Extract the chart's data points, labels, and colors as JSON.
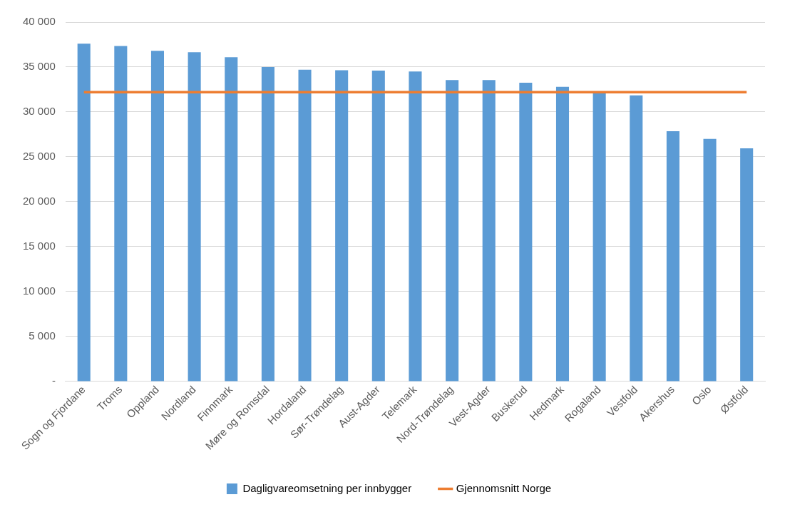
{
  "chart_data": {
    "type": "bar",
    "categories": [
      "Sogn og Fjordane",
      "Troms",
      "Oppland",
      "Nordland",
      "Finnmark",
      "Møre og Romsdal",
      "Hordaland",
      "Sør-Trøndelag",
      "Aust-Agder",
      "Telemark",
      "Nord-Trøndelag",
      "Vest-Agder",
      "Buskerud",
      "Hedmark",
      "Rogaland",
      "Vestfold",
      "Akershus",
      "Oslo",
      "Østfold"
    ],
    "series": [
      {
        "name": "Dagligvareomsetning per innbygger",
        "color": "#5b9bd5",
        "values": [
          37600,
          37350,
          36800,
          36650,
          36100,
          35000,
          34700,
          34650,
          34600,
          34500,
          33550,
          33550,
          33250,
          32800,
          32200,
          31850,
          27850,
          27000,
          25950
        ]
      },
      {
        "name": "Gjennomsnitt Norge",
        "type": "line",
        "color": "#ed7d31",
        "values": [
          32200,
          32200,
          32200,
          32200,
          32200,
          32200,
          32200,
          32200,
          32200,
          32200,
          32200,
          32200,
          32200,
          32200,
          32200,
          32200,
          32200,
          32200,
          32200
        ]
      }
    ],
    "ylim": [
      0,
      40000
    ],
    "yticks": [
      {
        "value": 0,
        "label": "-"
      },
      {
        "value": 5000,
        "label": "5 000"
      },
      {
        "value": 10000,
        "label": "10 000"
      },
      {
        "value": 15000,
        "label": "15 000"
      },
      {
        "value": 20000,
        "label": "20 000"
      },
      {
        "value": 25000,
        "label": "25 000"
      },
      {
        "value": 30000,
        "label": "30 000"
      },
      {
        "value": 35000,
        "label": "35 000"
      },
      {
        "value": 40000,
        "label": "40 000"
      }
    ],
    "grid": "y",
    "legend": "bottom",
    "marker": "none",
    "line_style": "solid"
  }
}
